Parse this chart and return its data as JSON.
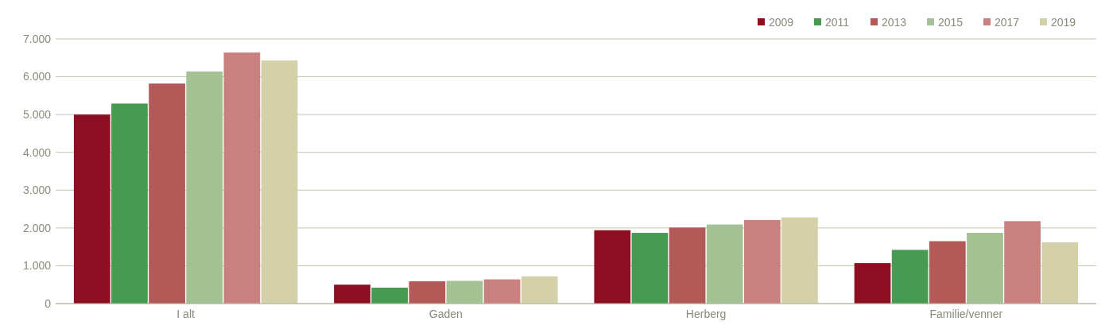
{
  "chart_data": {
    "type": "bar",
    "categories": [
      "I alt",
      "Gaden",
      "Herberg",
      "Familie/venner"
    ],
    "series": [
      {
        "name": "2009",
        "color": "#8b0e21",
        "values": [
          5000,
          500,
          1940,
          1070
        ]
      },
      {
        "name": "2011",
        "color": "#489951",
        "values": [
          5290,
          420,
          1870,
          1420
        ]
      },
      {
        "name": "2013",
        "color": "#b35957",
        "values": [
          5820,
          590,
          2010,
          1650
        ]
      },
      {
        "name": "2015",
        "color": "#a4c193",
        "values": [
          6140,
          600,
          2090,
          1870
        ]
      },
      {
        "name": "2017",
        "color": "#c9817f",
        "values": [
          6640,
          640,
          2210,
          2180
        ]
      },
      {
        "name": "2019",
        "color": "#d4d0a9",
        "values": [
          6430,
          720,
          2280,
          1620
        ]
      }
    ],
    "ylim": [
      0,
      7000
    ],
    "yticks": [
      0,
      {
        "value": 1000,
        "label": "1.000"
      },
      {
        "value": 2000,
        "label": "2.000"
      },
      {
        "value": 3000,
        "label": "3.000"
      },
      {
        "value": 4000,
        "label": "4.000"
      },
      {
        "value": 5000,
        "label": "5.000"
      },
      {
        "value": 6000,
        "label": "6.000"
      },
      {
        "value": 7000,
        "label": "7.000"
      }
    ],
    "grid": "y",
    "legend": "top right"
  }
}
